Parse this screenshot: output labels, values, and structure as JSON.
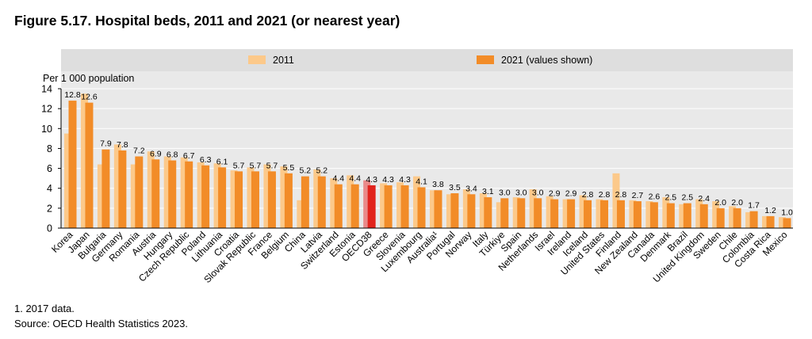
{
  "figure": {
    "title": "Figure 5.17. Hospital beds, 2011 and 2021 (or nearest year)",
    "footnote": "1. 2017 data.",
    "source": "Source: OECD Health Statistics 2023."
  },
  "chart_data": {
    "type": "bar",
    "ylabel": "Per 1 000 population",
    "ylim": [
      0,
      14
    ],
    "yticks": [
      0,
      2,
      4,
      6,
      8,
      10,
      12,
      14
    ],
    "grid": true,
    "legend_position": "top",
    "categories": [
      "Korea",
      "Japan",
      "Bulgaria",
      "Germany",
      "Romania",
      "Austria",
      "Hungary",
      "Czech Republic",
      "Poland",
      "Lithuania",
      "Croatia",
      "Slovak Republic",
      "France",
      "Belgium",
      "China",
      "Latvia",
      "Switzerland",
      "Estonia",
      "OECD38",
      "Greece",
      "Slovenia",
      "Luxembourg",
      "Australia¹",
      "Portugal",
      "Norway",
      "Italy",
      "Türkiye",
      "Spain",
      "Netherlands",
      "Israel",
      "Ireland",
      "Iceland",
      "United States",
      "Finland",
      "New Zealand",
      "Canada",
      "Denmark",
      "Brazil",
      "United Kingdom",
      "Sweden",
      "Chile",
      "Colombia",
      "Costa Rica",
      "Mexico"
    ],
    "highlight_category": "OECD38",
    "series": [
      {
        "name": "2011",
        "color": "#fcc98a",
        "highlight_color": "#e98a8a",
        "values": [
          9.5,
          13.5,
          6.4,
          8.4,
          6.4,
          7.7,
          7.2,
          7.1,
          6.6,
          6.5,
          5.8,
          6.1,
          6.4,
          6.2,
          2.8,
          5.9,
          5.0,
          5.3,
          4.8,
          4.5,
          4.6,
          5.2,
          3.8,
          3.4,
          3.9,
          3.5,
          2.6,
          3.1,
          3.9,
          3.2,
          2.9,
          3.3,
          2.9,
          5.5,
          2.8,
          2.7,
          3.1,
          2.4,
          2.9,
          2.7,
          2.2,
          1.6,
          1.2,
          1.1
        ]
      },
      {
        "name": "2021 (values shown)",
        "color": "#f28c28",
        "highlight_color": "#e1231d",
        "values": [
          12.8,
          12.6,
          7.9,
          7.8,
          7.2,
          6.9,
          6.8,
          6.7,
          6.3,
          6.1,
          5.7,
          5.7,
          5.7,
          5.5,
          5.2,
          5.2,
          4.4,
          4.4,
          4.3,
          4.3,
          4.3,
          4.1,
          3.8,
          3.5,
          3.4,
          3.1,
          3.0,
          3.0,
          3.0,
          2.9,
          2.9,
          2.8,
          2.8,
          2.8,
          2.7,
          2.6,
          2.5,
          2.5,
          2.4,
          2.0,
          2.0,
          1.7,
          1.2,
          1.0
        ],
        "labels": [
          "12.8",
          "12.6",
          "7.9",
          "7.8",
          "7.2",
          "6.9",
          "6.8",
          "6.7",
          "6.3",
          "6.1",
          "5.7",
          "5.7",
          "5.7",
          "5.5",
          "5.2",
          "5.2",
          "4.4",
          "4.4",
          "4.3",
          "4.3",
          "4.3",
          "4.1",
          "3.8",
          "3.5",
          "3.4",
          "3.1",
          "3.0",
          "3.0",
          "3.0",
          "2.9",
          "2.9",
          "2.8",
          "2.8",
          "2.8",
          "2.7",
          "2.6",
          "2.5",
          "2.5",
          "2.4",
          "2.0",
          "2.0",
          "1.7",
          "1.2",
          "1.0"
        ]
      }
    ]
  }
}
